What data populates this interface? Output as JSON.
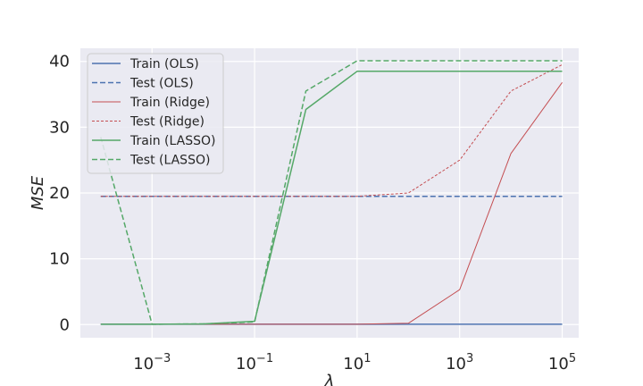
{
  "chart_data": {
    "type": "line",
    "xscale": "log",
    "xlim": [
      4e-05,
      210000
    ],
    "ylim": [
      -2,
      42
    ],
    "xlabel": "λ",
    "ylabel": "MSE",
    "grid": true,
    "legend": "top-left",
    "x": [
      0.0001,
      0.001,
      0.01,
      0.1,
      1,
      10,
      100,
      1000,
      10000,
      100000
    ],
    "xticks": [
      {
        "value": 0.001,
        "base": "10",
        "exp": "−3"
      },
      {
        "value": 0.1,
        "base": "10",
        "exp": "−1"
      },
      {
        "value": 10,
        "base": "10",
        "exp": "1"
      },
      {
        "value": 1000,
        "base": "10",
        "exp": "3"
      },
      {
        "value": 100000,
        "base": "10",
        "exp": "5"
      }
    ],
    "yticks": [
      0,
      10,
      20,
      30,
      40
    ],
    "series": [
      {
        "name": "Train (OLS)",
        "color": "#4c72b0",
        "style": "solid",
        "width": 1.5,
        "values": [
          0.05,
          0.05,
          0.05,
          0.05,
          0.05,
          0.05,
          0.05,
          0.05,
          0.05,
          0.05
        ]
      },
      {
        "name": "Test (OLS)",
        "color": "#4c72b0",
        "style": "dashed",
        "width": 1.5,
        "values": [
          19.5,
          19.5,
          19.5,
          19.5,
          19.5,
          19.5,
          19.5,
          19.5,
          19.5,
          19.5
        ]
      },
      {
        "name": "Train (Ridge)",
        "color": "#c44e52",
        "style": "solid",
        "width": 1,
        "values": [
          0.05,
          0.05,
          0.05,
          0.05,
          0.05,
          0.05,
          0.2,
          5.3,
          26.0,
          36.8
        ]
      },
      {
        "name": "Test (Ridge)",
        "color": "#c44e52",
        "style": "dashed-fine",
        "width": 1,
        "values": [
          19.5,
          19.5,
          19.5,
          19.5,
          19.5,
          19.5,
          20.0,
          25.0,
          35.5,
          39.5
        ]
      },
      {
        "name": "Train (LASSO)",
        "color": "#55a868",
        "style": "solid",
        "width": 1.5,
        "values": [
          0.05,
          0.05,
          0.1,
          0.5,
          32.7,
          38.5,
          38.5,
          38.5,
          38.5,
          38.5
        ]
      },
      {
        "name": "Test (LASSO)",
        "color": "#55a868",
        "style": "dashed",
        "width": 1.5,
        "values": [
          28.5,
          0.05,
          0.1,
          0.4,
          35.5,
          40.1,
          40.1,
          40.1,
          40.1,
          40.1
        ]
      }
    ]
  }
}
